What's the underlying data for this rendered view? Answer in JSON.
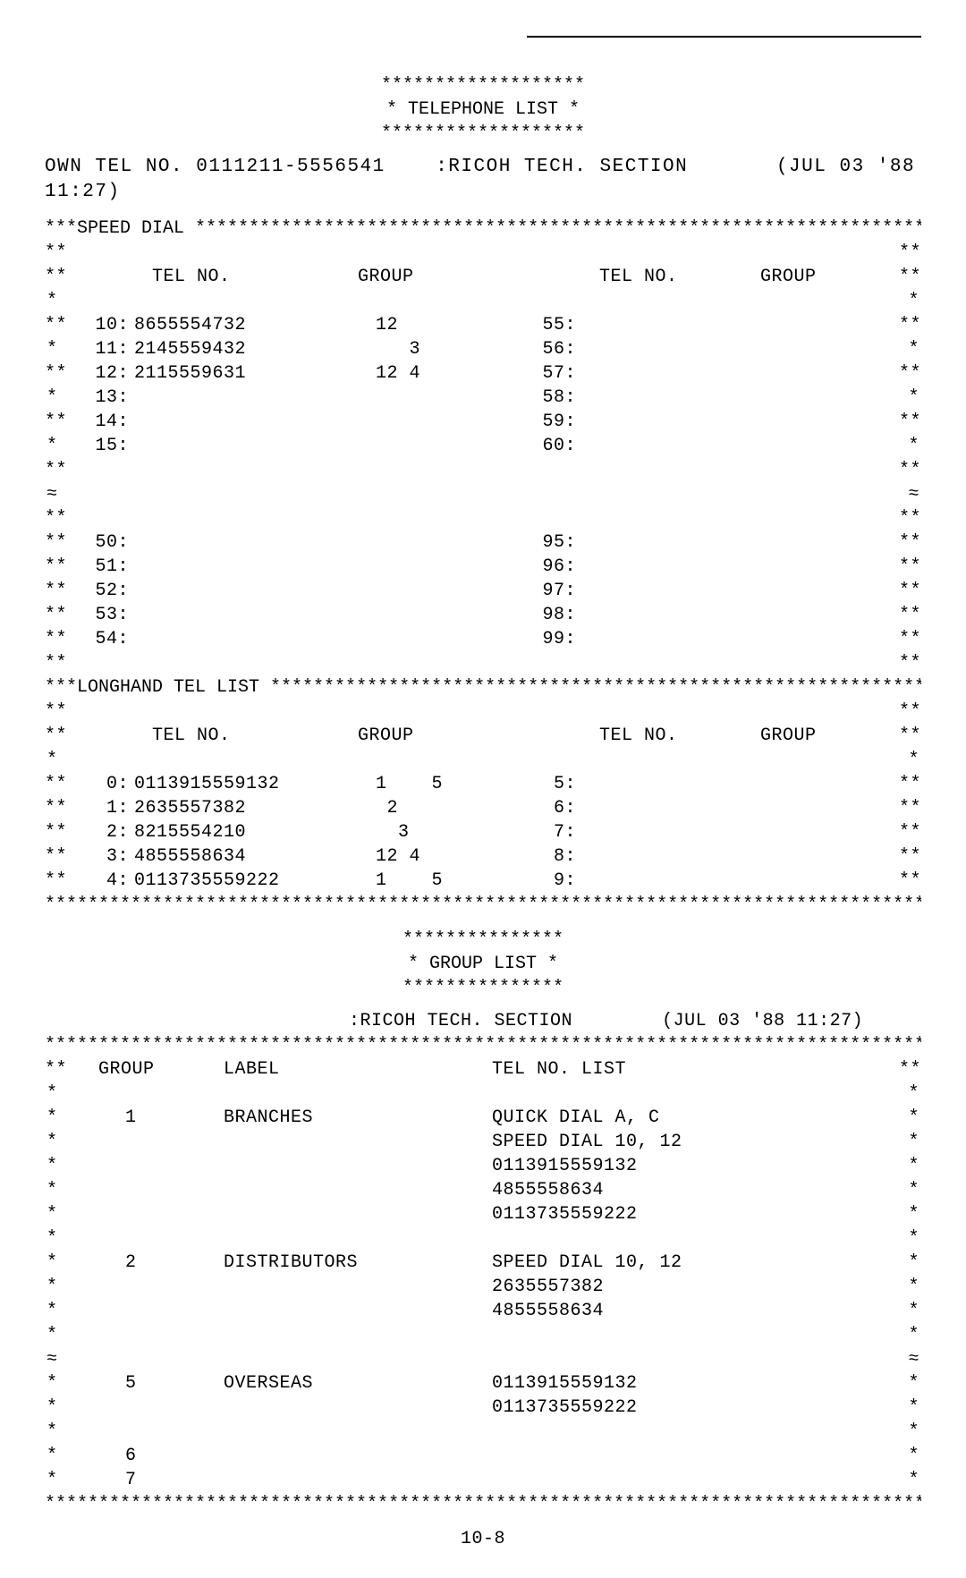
{
  "header": {
    "stars_top": "*******************",
    "title_line": "* TELEPHONE LIST *",
    "stars_bot": "*******************",
    "own_tel_label": "OWN TEL NO.",
    "own_tel_no": "0111211-5556541",
    "section_label": ":RICOH TECH. SECTION",
    "timestamp": "(JUL 03 '88 11:27)"
  },
  "speed_dial": {
    "title_prefix": "***SPEED DIAL ",
    "title_stars": "**********************************************************************",
    "col_tel": "TEL NO.",
    "col_group": "GROUP",
    "left_a": [
      {
        "idx": "10:",
        "tel": "8655554732",
        "grp": "12"
      },
      {
        "idx": "11:",
        "tel": "2145559432",
        "grp": "   3"
      },
      {
        "idx": "12:",
        "tel": "2115559631",
        "grp": "12 4"
      },
      {
        "idx": "13:",
        "tel": "",
        "grp": ""
      },
      {
        "idx": "14:",
        "tel": "",
        "grp": ""
      },
      {
        "idx": "15:",
        "tel": "",
        "grp": ""
      }
    ],
    "right_a": [
      {
        "idx": "55:"
      },
      {
        "idx": "56:"
      },
      {
        "idx": "57:"
      },
      {
        "idx": "58:"
      },
      {
        "idx": "59:"
      },
      {
        "idx": "60:"
      }
    ],
    "left_b": [
      {
        "idx": "50:"
      },
      {
        "idx": "51:"
      },
      {
        "idx": "52:"
      },
      {
        "idx": "53:"
      },
      {
        "idx": "54:"
      }
    ],
    "right_b": [
      {
        "idx": "95:"
      },
      {
        "idx": "96:"
      },
      {
        "idx": "97:"
      },
      {
        "idx": "98:"
      },
      {
        "idx": "99:"
      }
    ]
  },
  "longhand": {
    "title_prefix": "***LONGHAND TEL LIST ",
    "title_stars": "*************************************************************",
    "col_tel": "TEL NO.",
    "col_group": "GROUP",
    "left": [
      {
        "idx": "0:",
        "tel": "0113915559132",
        "grp": "1    5"
      },
      {
        "idx": "1:",
        "tel": "2635557382",
        "grp": " 2"
      },
      {
        "idx": "2:",
        "tel": "8215554210",
        "grp": "  3"
      },
      {
        "idx": "3:",
        "tel": "4855558634",
        "grp": "12 4"
      },
      {
        "idx": "4:",
        "tel": "0113735559222",
        "grp": "1    5"
      }
    ],
    "right": [
      {
        "idx": "5:"
      },
      {
        "idx": "6:"
      },
      {
        "idx": "7:"
      },
      {
        "idx": "8:"
      },
      {
        "idx": "9:"
      }
    ],
    "bottom_stars": "***************************************************************************************"
  },
  "group_list": {
    "stars_top": "***************",
    "title_line": "* GROUP LIST *",
    "stars_bot": "***************",
    "section_label": ":RICOH TECH. SECTION",
    "timestamp": "(JUL 03 '88 11:27)",
    "row_stars": "***************************************************************************************",
    "col_group": "GROUP",
    "col_label": "LABEL",
    "col_list": "TEL NO. LIST",
    "rows": [
      {
        "group": "1",
        "label": "BRANCHES",
        "list": [
          "QUICK DIAL A, C",
          "SPEED DIAL 10, 12",
          "0113915559132",
          "4855558634",
          "0113735559222"
        ]
      },
      {
        "group": "2",
        "label": "DISTRIBUTORS",
        "list": [
          "SPEED DIAL 10, 12",
          "2635557382",
          "4855558634"
        ]
      },
      {
        "group": "5",
        "label": "OVERSEAS",
        "list": [
          "0113915559132",
          "0113735559222"
        ]
      },
      {
        "group": "6",
        "label": "",
        "list": []
      },
      {
        "group": "7",
        "label": "",
        "list": []
      }
    ],
    "bottom_stars": "***************************************************************************************"
  },
  "page_no": "10-8"
}
